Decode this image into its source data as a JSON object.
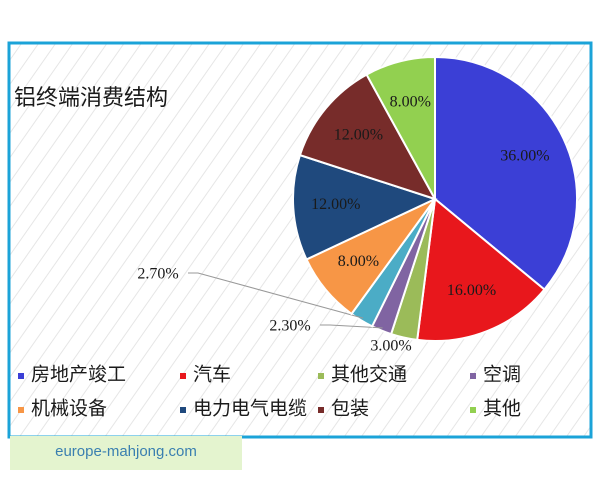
{
  "chart_data": {
    "type": "pie",
    "title": "铝终端消费结构",
    "categories": [
      "房地产竣工",
      "汽车",
      "其他交通",
      "空调",
      null,
      "机械设备",
      "电力电气电缆",
      "包装",
      "其他"
    ],
    "values": [
      36,
      16,
      3,
      2.3,
      2.7,
      8,
      12,
      12,
      8
    ],
    "value_labels": [
      "36.00%",
      "16.00%",
      "3.00%",
      "2.30%",
      "2.70%",
      "8.00%",
      "12.00%",
      "12.00%",
      "8.00%"
    ],
    "colors": [
      "#3b3fd6",
      "#e8171c",
      "#9bbb59",
      "#8064a2",
      "#4bacc6",
      "#f79646",
      "#1f497d",
      "#772c2a",
      "#92d050"
    ]
  },
  "watermark": "europe-mahjong.com"
}
